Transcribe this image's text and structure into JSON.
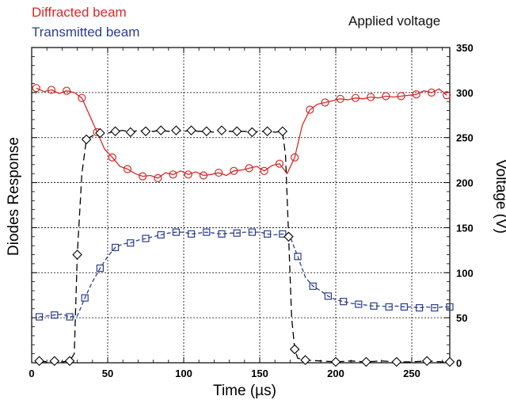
{
  "chart_data": {
    "type": "line",
    "xlabel": "Time (µs)",
    "ylabel_left": "Diodes Response",
    "ylabel_right": "Voltage (V)",
    "xlim": [
      0,
      275
    ],
    "ylim_right": [
      0,
      350
    ],
    "x_ticks": [
      0,
      50,
      100,
      150,
      200,
      250
    ],
    "y_ticks_right": [
      0,
      50,
      100,
      150,
      200,
      250,
      300,
      350
    ],
    "grid": true,
    "series": [
      {
        "name": "Diffracted beam",
        "color": "#d42a2a",
        "marker": "circle",
        "line_style": "solid",
        "x": [
          3,
          8,
          13,
          18,
          23,
          28,
          33,
          38,
          43,
          48,
          53,
          58,
          63,
          68,
          73,
          78,
          83,
          88,
          93,
          98,
          103,
          108,
          113,
          118,
          123,
          128,
          133,
          138,
          143,
          148,
          153,
          158,
          163,
          168,
          173,
          178,
          183,
          188,
          193,
          198,
          203,
          208,
          213,
          218,
          223,
          228,
          233,
          238,
          243,
          248,
          253,
          258,
          263,
          268,
          273
        ],
        "values": [
          305,
          301,
          303,
          299,
          302,
          300,
          294,
          275,
          256,
          237,
          228,
          218,
          215,
          210,
          207,
          208,
          205,
          211,
          209,
          213,
          209,
          212,
          208,
          209,
          211,
          208,
          213,
          214,
          216,
          218,
          213,
          219,
          221,
          210,
          228,
          264,
          281,
          287,
          289,
          291,
          293,
          292,
          294,
          293,
          295,
          294,
          296,
          295,
          296,
          297,
          298,
          302,
          300,
          304,
          297
        ]
      },
      {
        "name": "Transmitted beam",
        "color": "#2b3f8a",
        "marker": "square",
        "line_style": "dashed",
        "x": [
          5,
          10,
          15,
          20,
          25,
          30,
          35,
          40,
          45,
          50,
          55,
          60,
          65,
          70,
          75,
          80,
          85,
          90,
          95,
          100,
          105,
          110,
          115,
          120,
          125,
          130,
          135,
          140,
          145,
          150,
          155,
          160,
          165,
          170,
          175,
          180,
          185,
          190,
          195,
          200,
          205,
          210,
          215,
          220,
          225,
          230,
          235,
          240,
          245,
          250,
          255,
          260,
          265,
          270,
          275
        ],
        "values": [
          51,
          52,
          53,
          54,
          51,
          52,
          72,
          90,
          105,
          118,
          128,
          132,
          133,
          136,
          138,
          140,
          142,
          144,
          145,
          145,
          143,
          144,
          145,
          144,
          143,
          144,
          144,
          145,
          145,
          145,
          143,
          142,
          143,
          140,
          118,
          95,
          85,
          80,
          74,
          70,
          68,
          66,
          65,
          64,
          63,
          63,
          62,
          63,
          62,
          62,
          61,
          62,
          61,
          62,
          62
        ]
      },
      {
        "name": "Applied voltage",
        "color": "#000000",
        "marker": "diamond",
        "line_style": "dashed",
        "x": [
          5,
          10,
          15,
          20,
          25,
          28,
          30,
          33,
          36,
          40,
          45,
          50,
          55,
          60,
          65,
          70,
          75,
          80,
          85,
          90,
          95,
          100,
          105,
          110,
          115,
          120,
          125,
          130,
          135,
          140,
          145,
          150,
          155,
          160,
          165,
          167,
          169,
          171,
          173,
          175,
          180,
          190,
          200,
          210,
          220,
          230,
          240,
          250,
          260,
          270,
          275
        ],
        "values": [
          2,
          1,
          2,
          1,
          2,
          10,
          120,
          210,
          248,
          252,
          255,
          255,
          257,
          258,
          256,
          258,
          257,
          257,
          258,
          257,
          258,
          257,
          258,
          257,
          257,
          256,
          258,
          257,
          257,
          257,
          256,
          257,
          257,
          256,
          257,
          230,
          140,
          50,
          15,
          5,
          3,
          2,
          1,
          2,
          1,
          2,
          1,
          1,
          2,
          1,
          1
        ]
      }
    ]
  }
}
